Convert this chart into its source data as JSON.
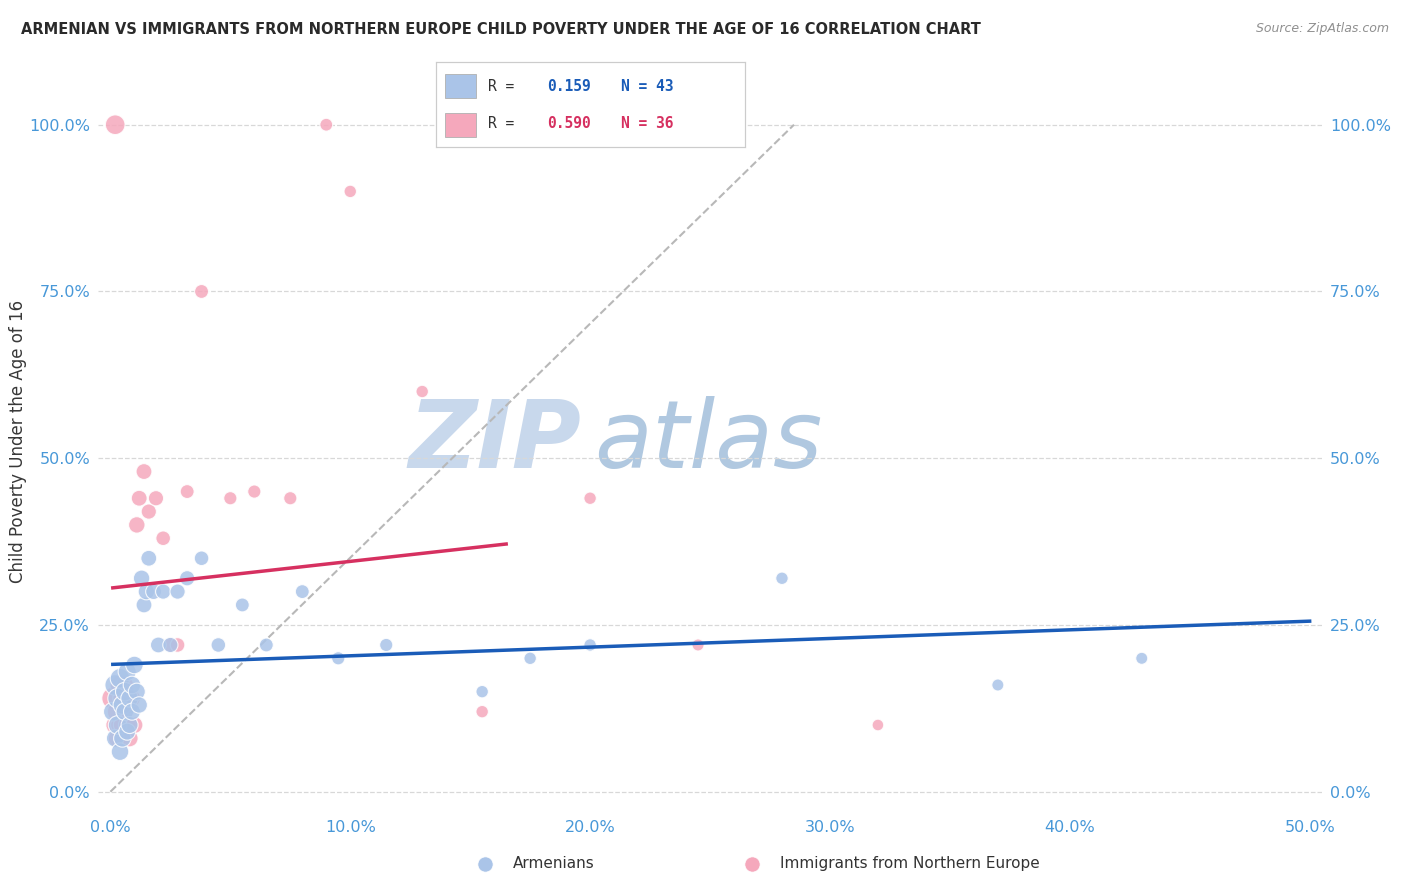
{
  "title": "ARMENIAN VS IMMIGRANTS FROM NORTHERN EUROPE CHILD POVERTY UNDER THE AGE OF 16 CORRELATION CHART",
  "source": "Source: ZipAtlas.com",
  "ylabel": "Child Poverty Under the Age of 16",
  "xlim": [
    -0.005,
    0.505
  ],
  "ylim": [
    -0.03,
    1.08
  ],
  "xticks": [
    0.0,
    0.1,
    0.2,
    0.3,
    0.4,
    0.5
  ],
  "xticklabels": [
    "0.0%",
    "10.0%",
    "20.0%",
    "30.0%",
    "40.0%",
    "50.0%"
  ],
  "yticks": [
    0.0,
    0.25,
    0.5,
    0.75,
    1.0
  ],
  "yticklabels": [
    "0.0%",
    "25.0%",
    "50.0%",
    "75.0%",
    "100.0%"
  ],
  "watermark_zip": "ZIP",
  "watermark_atlas": "atlas",
  "legend_r1": "R = ",
  "legend_v1": " 0.159",
  "legend_n1": "  N = 43",
  "legend_r2": "R = ",
  "legend_v2": " 0.590",
  "legend_n2": "  N = 36",
  "armenian_x": [
    0.001,
    0.002,
    0.002,
    0.003,
    0.003,
    0.004,
    0.004,
    0.005,
    0.005,
    0.006,
    0.006,
    0.007,
    0.007,
    0.008,
    0.008,
    0.009,
    0.009,
    0.01,
    0.011,
    0.012,
    0.013,
    0.014,
    0.015,
    0.016,
    0.018,
    0.02,
    0.022,
    0.025,
    0.028,
    0.032,
    0.038,
    0.045,
    0.055,
    0.065,
    0.08,
    0.095,
    0.115,
    0.155,
    0.175,
    0.2,
    0.28,
    0.37,
    0.43
  ],
  "armenian_y": [
    0.12,
    0.16,
    0.08,
    0.14,
    0.1,
    0.17,
    0.06,
    0.13,
    0.08,
    0.15,
    0.12,
    0.09,
    0.18,
    0.14,
    0.1,
    0.16,
    0.12,
    0.19,
    0.15,
    0.13,
    0.32,
    0.28,
    0.3,
    0.35,
    0.3,
    0.22,
    0.3,
    0.22,
    0.3,
    0.32,
    0.35,
    0.22,
    0.28,
    0.22,
    0.3,
    0.2,
    0.22,
    0.15,
    0.2,
    0.22,
    0.32,
    0.16,
    0.2
  ],
  "armenian_sizes": [
    180,
    220,
    160,
    200,
    180,
    200,
    160,
    180,
    160,
    180,
    160,
    150,
    170,
    160,
    150,
    160,
    150,
    160,
    150,
    140,
    140,
    130,
    140,
    130,
    130,
    130,
    120,
    120,
    120,
    120,
    110,
    110,
    100,
    100,
    100,
    90,
    90,
    80,
    80,
    80,
    80,
    75,
    75
  ],
  "northern_x": [
    0.001,
    0.002,
    0.002,
    0.003,
    0.003,
    0.004,
    0.004,
    0.005,
    0.005,
    0.006,
    0.006,
    0.007,
    0.008,
    0.008,
    0.009,
    0.01,
    0.011,
    0.012,
    0.014,
    0.016,
    0.019,
    0.022,
    0.025,
    0.028,
    0.032,
    0.038,
    0.05,
    0.06,
    0.075,
    0.09,
    0.1,
    0.13,
    0.155,
    0.2,
    0.245,
    0.32
  ],
  "northern_y": [
    0.14,
    1.0,
    0.1,
    0.12,
    0.08,
    0.16,
    0.1,
    0.14,
    0.1,
    0.12,
    0.16,
    0.1,
    0.13,
    0.08,
    0.14,
    0.1,
    0.4,
    0.44,
    0.48,
    0.42,
    0.44,
    0.38,
    0.22,
    0.22,
    0.45,
    0.75,
    0.44,
    0.45,
    0.44,
    1.0,
    0.9,
    0.6,
    0.12,
    0.44,
    0.22,
    0.1
  ],
  "northern_sizes": [
    250,
    200,
    180,
    220,
    180,
    200,
    180,
    190,
    170,
    180,
    160,
    160,
    160,
    150,
    150,
    150,
    140,
    130,
    130,
    120,
    120,
    110,
    110,
    110,
    100,
    100,
    90,
    90,
    90,
    85,
    80,
    80,
    80,
    80,
    75,
    70
  ],
  "blue_color": "#aac4e8",
  "pink_color": "#f5a8bc",
  "blue_line_color": "#1a5cb8",
  "pink_line_color": "#d63060",
  "dashed_line_color": "#b8b8b8",
  "background_color": "#ffffff",
  "grid_color": "#d8d8d8",
  "title_color": "#2a2a2a",
  "axis_color": "#4898d8",
  "watermark_zip_color": "#c8d8ec",
  "watermark_atlas_color": "#b0c8e0"
}
